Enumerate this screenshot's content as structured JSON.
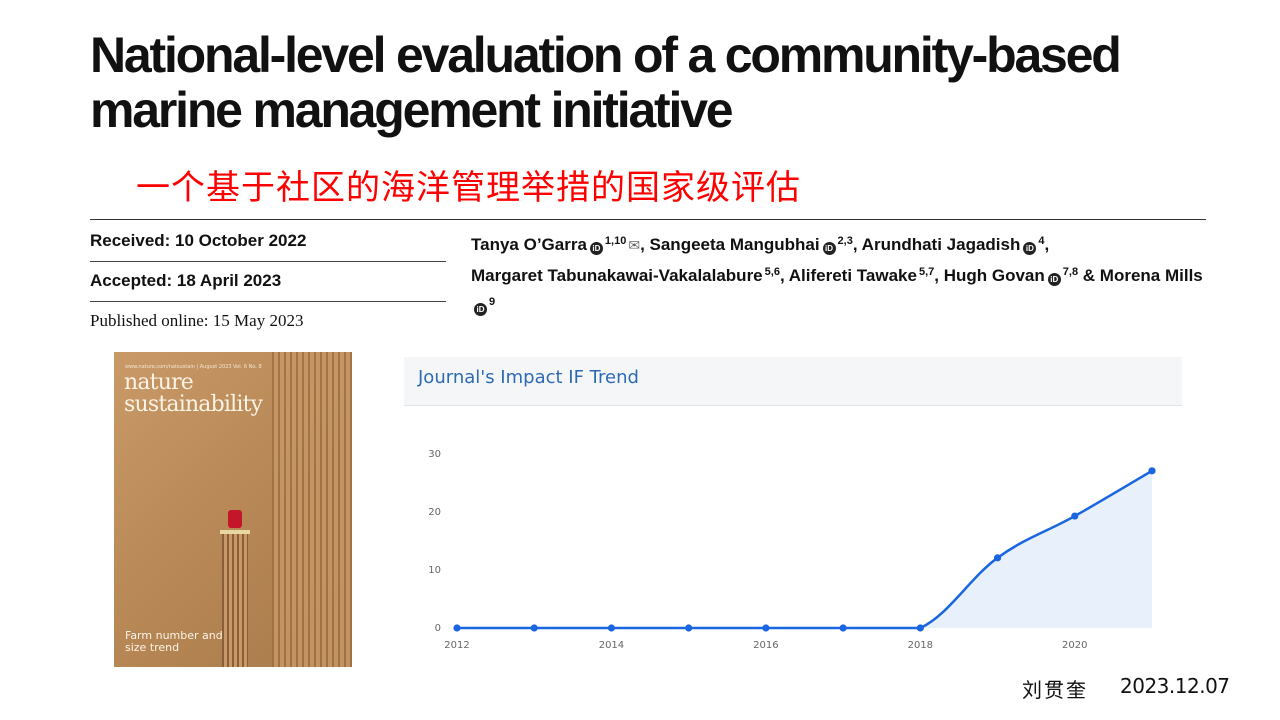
{
  "paper": {
    "title": "National-level evaluation of a community-based marine management initiative",
    "title_cn": "一个基于社区的海洋管理举措的国家级评估",
    "received": "Received: 10 October 2022",
    "accepted": "Accepted: 18 April 2023",
    "published": "Published online: 15 May 2023",
    "authors": [
      {
        "name": "Tanya O’Garra",
        "aff": "1,10",
        "orcid": true,
        "mail": true,
        "sep": ", "
      },
      {
        "name": "Sangeeta Mangubhai",
        "aff": "2,3",
        "orcid": true,
        "sep": ", "
      },
      {
        "name": "Arundhati Jagadish",
        "aff": "4",
        "orcid": true,
        "sep": ","
      },
      {
        "name": "Margaret Tabunakawai-Vakalalabure",
        "aff": "5,6",
        "orcid": false,
        "sep": ", "
      },
      {
        "name": "Alifereti Tawake",
        "aff": "5,7",
        "orcid": false,
        "sep": ", "
      },
      {
        "name": "Hugh Govan",
        "aff": "7,8",
        "orcid": true,
        "sep": " & "
      },
      {
        "name": "Morena Mills",
        "aff": "9",
        "orcid": true,
        "sep": ""
      }
    ]
  },
  "cover": {
    "meta": "www.nature.com/natsustain | August 2023 Vol. 6 No. 8",
    "brand_line1": "nature",
    "brand_line2": "sustainability",
    "caption": "Farm number and size trend"
  },
  "chart_data": {
    "type": "area",
    "title": "Journal's Impact IF Trend",
    "x": [
      2012,
      2013,
      2014,
      2015,
      2016,
      2017,
      2018,
      2019,
      2020,
      2021
    ],
    "series": [
      {
        "values": [
          0,
          0,
          0,
          0,
          0,
          0,
          0,
          12.1,
          19.3,
          27.1
        ]
      }
    ],
    "x_ticks": [
      2012,
      2014,
      2016,
      2018,
      2020
    ],
    "y_ticks": [
      0,
      10,
      20,
      30
    ],
    "xlim": [
      2012,
      2021
    ],
    "ylim": [
      0,
      30
    ],
    "grid": false,
    "line_color": "#1a66e0",
    "fill_color": "#e8f0fc"
  },
  "signature": {
    "name": "刘贯奎",
    "date": "2023.12.07"
  }
}
